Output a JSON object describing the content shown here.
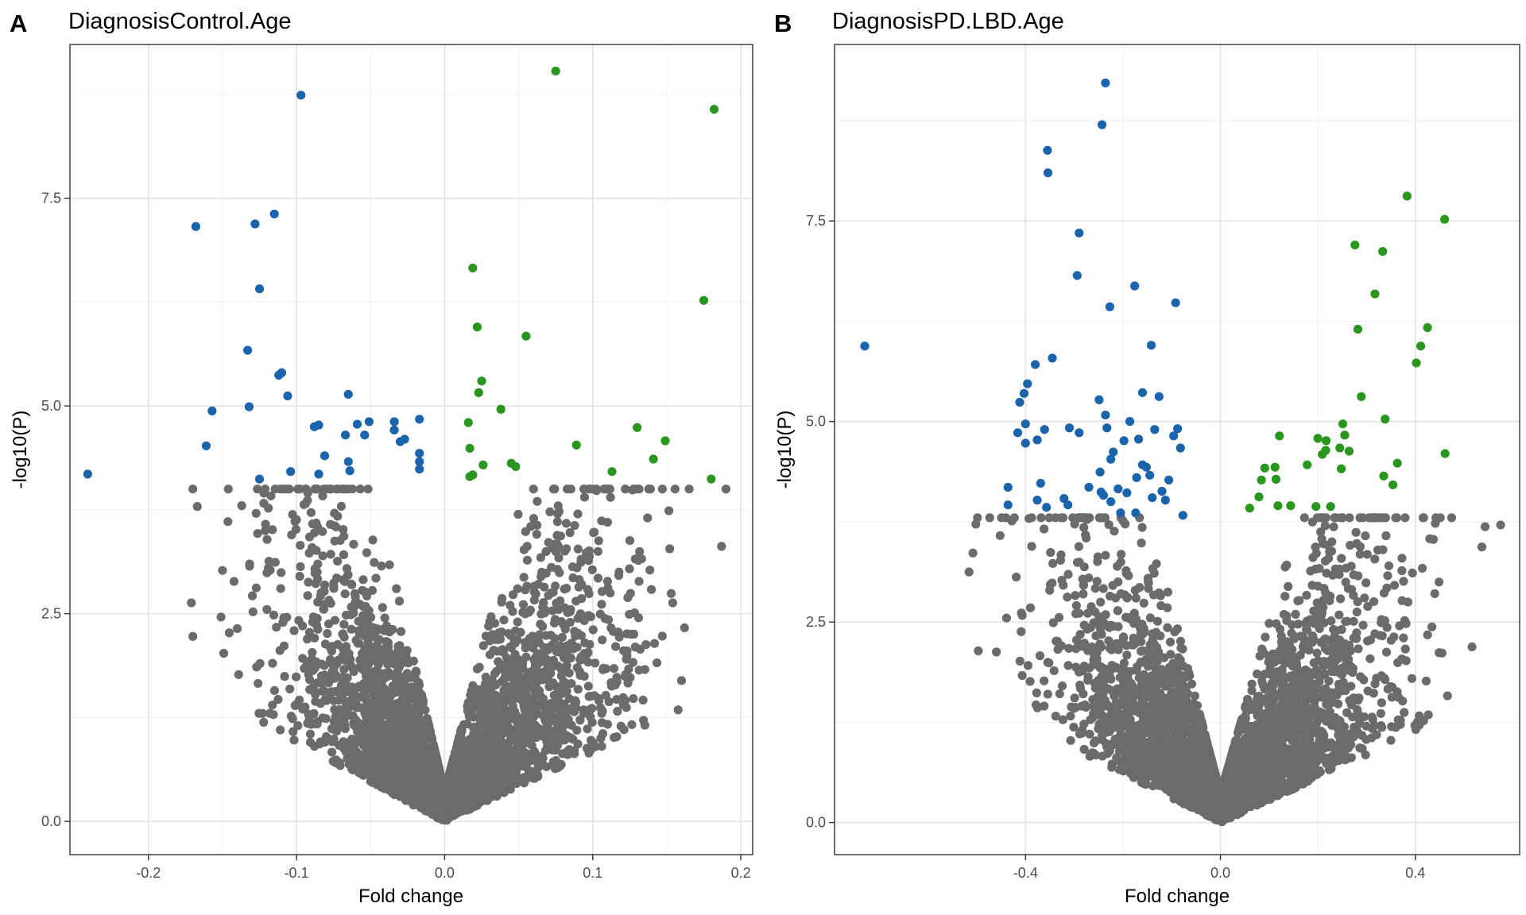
{
  "colors": {
    "non_significant": "#6b6b6b",
    "down": "#1b64ab",
    "up": "#2a961f"
  },
  "chart_data": [
    {
      "type": "scatter",
      "panel": "A",
      "title": "DiagnosisControl.Age",
      "xlabel": "Fold change",
      "ylabel": "-log10(P)",
      "xlim": [
        -0.253,
        0.208
      ],
      "ylim": [
        -0.4,
        9.35
      ],
      "xticks": [
        -0.2,
        -0.1,
        0.0,
        0.1,
        0.2
      ],
      "xtick_labels": [
        "-0.2",
        "-0.1",
        "0.0",
        "0.1",
        "0.2"
      ],
      "yticks": [
        0.0,
        2.5,
        5.0,
        7.5
      ],
      "ytick_labels": [
        "0.0",
        "2.5",
        "5.0",
        "7.5"
      ],
      "grid": true,
      "bulk_cloud": {
        "max_y_approx": 4.0,
        "x_range": [
          -0.17,
          0.19
        ],
        "note_count": "thousands of non-significant points"
      },
      "series": [
        {
          "group": "down",
          "points": [
            [
              -0.241,
              4.18
            ],
            [
              -0.168,
              7.16
            ],
            [
              -0.161,
              4.52
            ],
            [
              -0.157,
              4.94
            ],
            [
              -0.133,
              5.67
            ],
            [
              -0.132,
              4.99
            ],
            [
              -0.128,
              7.19
            ],
            [
              -0.125,
              6.41
            ],
            [
              -0.125,
              4.12
            ],
            [
              -0.115,
              7.31
            ],
            [
              -0.112,
              5.37
            ],
            [
              -0.11,
              5.4
            ],
            [
              -0.106,
              5.12
            ],
            [
              -0.104,
              4.21
            ],
            [
              -0.097,
              8.74
            ],
            [
              -0.088,
              4.75
            ],
            [
              -0.085,
              4.77
            ],
            [
              -0.085,
              4.18
            ],
            [
              -0.081,
              4.4
            ],
            [
              -0.067,
              4.65
            ],
            [
              -0.065,
              5.14
            ],
            [
              -0.065,
              4.33
            ],
            [
              -0.064,
              4.22
            ],
            [
              -0.059,
              4.78
            ],
            [
              -0.054,
              4.65
            ],
            [
              -0.051,
              4.81
            ],
            [
              -0.034,
              4.81
            ],
            [
              -0.034,
              4.71
            ],
            [
              -0.03,
              4.57
            ],
            [
              -0.027,
              4.6
            ],
            [
              -0.017,
              4.84
            ],
            [
              -0.017,
              4.43
            ],
            [
              -0.017,
              4.33
            ],
            [
              -0.017,
              4.24
            ]
          ]
        },
        {
          "group": "up",
          "points": [
            [
              0.016,
              4.8
            ],
            [
              0.017,
              4.49
            ],
            [
              0.017,
              4.15
            ],
            [
              0.019,
              4.17
            ],
            [
              0.019,
              6.66
            ],
            [
              0.022,
              5.95
            ],
            [
              0.023,
              5.16
            ],
            [
              0.025,
              5.3
            ],
            [
              0.026,
              4.29
            ],
            [
              0.038,
              4.96
            ],
            [
              0.045,
              4.31
            ],
            [
              0.048,
              4.27
            ],
            [
              0.055,
              5.84
            ],
            [
              0.075,
              9.03
            ],
            [
              0.089,
              4.53
            ],
            [
              0.113,
              4.21
            ],
            [
              0.13,
              4.74
            ],
            [
              0.141,
              4.36
            ],
            [
              0.149,
              4.58
            ],
            [
              0.175,
              6.27
            ],
            [
              0.18,
              4.12
            ],
            [
              0.182,
              8.57
            ]
          ]
        },
        {
          "group": "non_significant_outliers",
          "points": [
            [
              -0.171,
              2.63
            ],
            [
              -0.167,
              3.79
            ],
            [
              -0.15,
              3.02
            ],
            [
              -0.151,
              2.46
            ],
            [
              -0.14,
              2.32
            ],
            [
              -0.137,
              3.8
            ],
            [
              -0.122,
              3.95
            ],
            [
              -0.119,
              3.77
            ],
            [
              -0.12,
              2.55
            ],
            [
              -0.123,
              1.3
            ],
            [
              -0.118,
              1.3
            ],
            [
              -0.1,
              3.63
            ],
            [
              -0.119,
              3.05
            ],
            [
              0.187,
              3.31
            ],
            [
              0.162,
              2.33
            ],
            [
              0.154,
              2.63
            ],
            [
              0.152,
              3.28
            ],
            [
              0.147,
              2.23
            ],
            [
              0.133,
              3.16
            ],
            [
              0.131,
              2.45
            ],
            [
              0.134,
              1.46
            ],
            [
              0.112,
              3.9
            ],
            [
              0.11,
              3.6
            ],
            [
              0.101,
              3.48
            ]
          ]
        }
      ]
    },
    {
      "type": "scatter",
      "panel": "B",
      "title": "DiagnosisPD.LBD.Age",
      "xlabel": "Fold change",
      "ylabel": "-log10(P)",
      "xlim": [
        -0.792,
        0.614
      ],
      "ylim": [
        -0.4,
        9.7
      ],
      "xticks": [
        -0.4,
        0.0,
        0.4
      ],
      "xtick_labels": [
        "-0.4",
        "0.0",
        "0.4"
      ],
      "yticks": [
        0.0,
        2.5,
        5.0,
        7.5
      ],
      "ytick_labels": [
        "0.0",
        "2.5",
        "5.0",
        "7.5"
      ],
      "grid": true,
      "bulk_cloud": {
        "max_y_approx": 3.8,
        "x_range": [
          -0.52,
          0.57
        ],
        "note_count": "thousands of non-significant points"
      },
      "series": [
        {
          "group": "down",
          "points": [
            [
              -0.73,
              5.94
            ],
            [
              -0.436,
              4.18
            ],
            [
              -0.436,
              3.96
            ],
            [
              -0.416,
              4.86
            ],
            [
              -0.412,
              5.24
            ],
            [
              -0.403,
              5.35
            ],
            [
              -0.4,
              4.97
            ],
            [
              -0.4,
              4.73
            ],
            [
              -0.396,
              5.47
            ],
            [
              -0.38,
              5.71
            ],
            [
              -0.376,
              4.77
            ],
            [
              -0.376,
              4.02
            ],
            [
              -0.369,
              4.23
            ],
            [
              -0.361,
              4.9
            ],
            [
              -0.357,
              3.93
            ],
            [
              -0.354,
              8.1
            ],
            [
              -0.345,
              5.79
            ],
            [
              -0.321,
              4.04
            ],
            [
              -0.313,
              3.96
            ],
            [
              -0.31,
              4.92
            ],
            [
              -0.294,
              6.82
            ],
            [
              -0.29,
              7.35
            ],
            [
              -0.29,
              4.86
            ],
            [
              -0.27,
              4.18
            ],
            [
              -0.249,
              5.27
            ],
            [
              -0.247,
              4.37
            ],
            [
              -0.245,
              4.12
            ],
            [
              -0.243,
              8.7
            ],
            [
              -0.24,
              4.08
            ],
            [
              -0.236,
              9.22
            ],
            [
              -0.236,
              5.08
            ],
            [
              -0.233,
              4.92
            ],
            [
              -0.227,
              6.43
            ],
            [
              -0.225,
              4.53
            ],
            [
              -0.225,
              4.0
            ],
            [
              -0.22,
              4.62
            ],
            [
              -0.21,
              4.16
            ],
            [
              -0.205,
              3.86
            ],
            [
              -0.198,
              4.76
            ],
            [
              -0.192,
              4.11
            ],
            [
              -0.186,
              5.0
            ],
            [
              -0.176,
              6.69
            ],
            [
              -0.174,
              3.86
            ],
            [
              -0.172,
              4.3
            ],
            [
              -0.168,
              4.78
            ],
            [
              -0.16,
              4.46
            ],
            [
              -0.16,
              5.36
            ],
            [
              -0.152,
              4.43
            ],
            [
              -0.145,
              4.33
            ],
            [
              -0.142,
              5.95
            ],
            [
              -0.14,
              4.05
            ],
            [
              -0.135,
              4.9
            ],
            [
              -0.126,
              5.31
            ],
            [
              -0.12,
              4.13
            ],
            [
              -0.113,
              4.02
            ],
            [
              -0.106,
              4.27
            ],
            [
              -0.096,
              4.82
            ],
            [
              -0.092,
              6.48
            ],
            [
              -0.088,
              4.91
            ],
            [
              -0.082,
              4.67
            ],
            [
              -0.077,
              3.83
            ],
            [
              -0.355,
              8.38
            ]
          ]
        },
        {
          "group": "up",
          "points": [
            [
              0.06,
              3.92
            ],
            [
              0.079,
              4.06
            ],
            [
              0.084,
              4.27
            ],
            [
              0.091,
              4.42
            ],
            [
              0.112,
              4.43
            ],
            [
              0.114,
              4.28
            ],
            [
              0.118,
              3.95
            ],
            [
              0.121,
              4.82
            ],
            [
              0.144,
              3.95
            ],
            [
              0.178,
              4.46
            ],
            [
              0.196,
              3.94
            ],
            [
              0.2,
              4.79
            ],
            [
              0.209,
              4.59
            ],
            [
              0.216,
              4.64
            ],
            [
              0.217,
              4.76
            ],
            [
              0.226,
              3.94
            ],
            [
              0.245,
              4.67
            ],
            [
              0.248,
              4.41
            ],
            [
              0.251,
              4.97
            ],
            [
              0.255,
              4.83
            ],
            [
              0.264,
              4.63
            ],
            [
              0.276,
              7.2
            ],
            [
              0.282,
              6.15
            ],
            [
              0.289,
              5.31
            ],
            [
              0.317,
              6.59
            ],
            [
              0.333,
              7.12
            ],
            [
              0.335,
              4.32
            ],
            [
              0.338,
              5.03
            ],
            [
              0.354,
              4.21
            ],
            [
              0.363,
              4.48
            ],
            [
              0.383,
              7.81
            ],
            [
              0.402,
              5.73
            ],
            [
              0.411,
              5.94
            ],
            [
              0.425,
              6.17
            ],
            [
              0.46,
              7.52
            ],
            [
              0.461,
              4.6
            ]
          ]
        },
        {
          "group": "non_significant_outliers",
          "points": [
            [
              -0.508,
              3.36
            ],
            [
              -0.502,
              3.72
            ],
            [
              -0.497,
              2.14
            ],
            [
              -0.439,
              2.55
            ],
            [
              -0.428,
              3.76
            ],
            [
              -0.409,
              2.38
            ],
            [
              -0.393,
              3.79
            ],
            [
              -0.362,
              3.66
            ],
            [
              -0.344,
              3.23
            ],
            [
              0.434,
              2.44
            ],
            [
              0.441,
              3.73
            ],
            [
              0.437,
              3.53
            ],
            [
              0.466,
              1.58
            ],
            [
              0.575,
              3.71
            ],
            [
              0.381,
              2.48
            ],
            [
              0.425,
              2.34
            ],
            [
              0.408,
              1.33
            ],
            [
              0.399,
              1.21
            ]
          ]
        }
      ]
    }
  ]
}
